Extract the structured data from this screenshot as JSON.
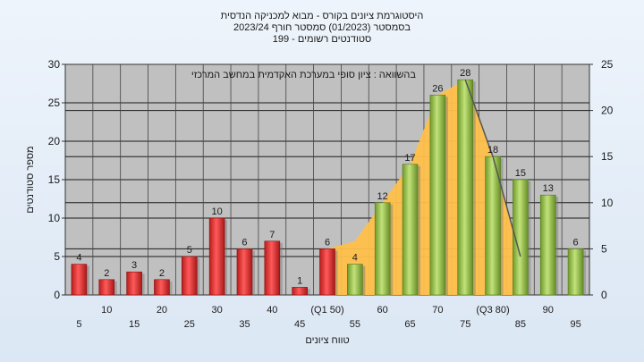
{
  "chart_data": {
    "type": "bar",
    "title_lines": [
      "היסטוגרמת ציונים בקורס - מבוא למכניקה הנדסית",
      "בסמסטר  (01/2023)  סמסטר חורף 2023/24",
      "סטודנטים רשומים - 199"
    ],
    "annotation": "בהשוואה : ציון סופי במערכת האקדמית במחשב המרכזי",
    "xlabel": "טווח ציונים",
    "ylabel": "מספר סטודנטים",
    "ylim": [
      0,
      30
    ],
    "y_ticks": [
      0,
      5,
      10,
      15,
      20,
      25,
      30
    ],
    "y2lim": [
      0,
      25
    ],
    "y2_ticks": [
      0,
      5,
      10,
      15,
      20,
      25
    ],
    "categories": [
      "5",
      "10",
      "15",
      "20",
      "25",
      "30",
      "35",
      "40",
      "45",
      "(Q1 50)",
      "55",
      "60",
      "65",
      "70",
      "75",
      "(Q3 80)",
      "85",
      "90",
      "95"
    ],
    "values": [
      4,
      2,
      3,
      2,
      5,
      10,
      6,
      7,
      1,
      6,
      4,
      12,
      17,
      26,
      28,
      18,
      15,
      13,
      6
    ],
    "data_labels": [
      "4",
      "2",
      "3",
      "2",
      "5",
      "10",
      "6",
      "7",
      "1",
      "6",
      "4",
      "12",
      "17",
      "26",
      "28",
      "18",
      "15",
      "13",
      "6"
    ],
    "bar_colors": [
      "#e53535",
      "#e53535",
      "#e53535",
      "#e53535",
      "#e53535",
      "#e53535",
      "#e53535",
      "#e53535",
      "#e53535",
      "#e53535",
      "#94c84a",
      "#94c84a",
      "#94c84a",
      "#94c84a",
      "#94c84a",
      "#94c84a",
      "#94c84a",
      "#94c84a",
      "#94c84a"
    ],
    "area_series": {
      "x": [
        "(Q1 50)",
        "55",
        "60",
        "65",
        "70",
        "75",
        "(Q3 80)",
        "85"
      ],
      "values": [
        6,
        7,
        12,
        17,
        26,
        28,
        18,
        5
      ],
      "color": "#ffc04a"
    },
    "line_series": {
      "x": [
        "75",
        "(Q3 80)",
        "85"
      ],
      "values": [
        28,
        18,
        5
      ],
      "color": "#555555"
    },
    "grid": true,
    "plot_background": "#c0c0c0"
  }
}
